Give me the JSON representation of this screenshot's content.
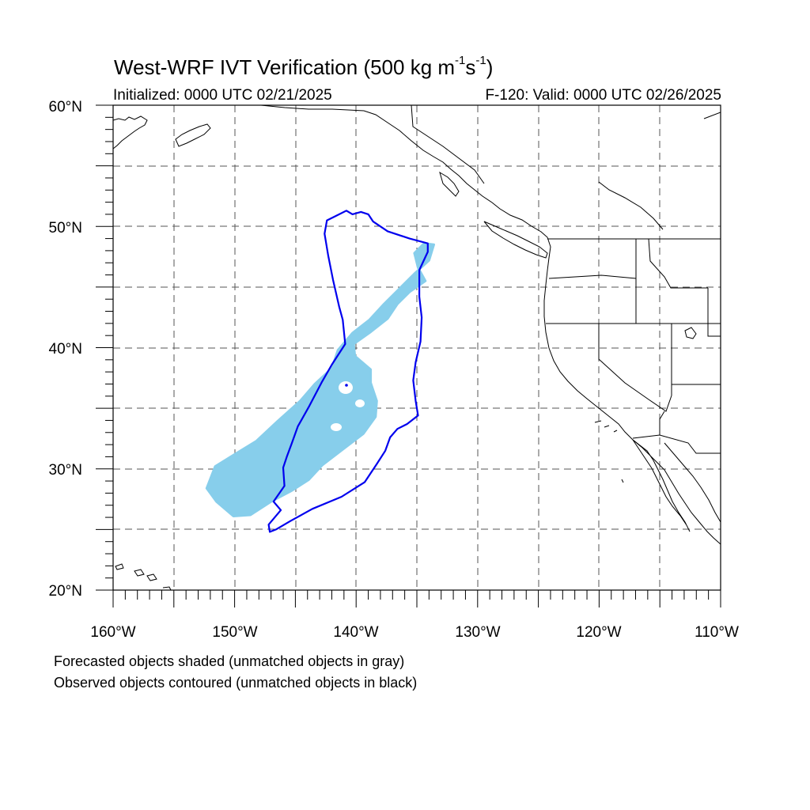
{
  "title_main": "West-WRF IVT Verification (500 kg m",
  "title_sup1": "-1",
  "title_s": "s",
  "title_sup2": "-1",
  "title_close": ")",
  "init_label": "Initialized: 0000 UTC 02/21/2025",
  "valid_label": "F-120: Valid: 0000 UTC 02/26/2025",
  "footnote1": "Forecasted objects shaded (unmatched objects in gray)",
  "footnote2": "Observed objects contoured (unmatched objects in black)",
  "map": {
    "lon_range": [
      -160,
      -110
    ],
    "lat_range": [
      20,
      60
    ],
    "grid_lines": "dashed every 5 degrees",
    "lat_labels": [
      "20°N",
      "30°N",
      "40°N",
      "50°N",
      "60°N"
    ],
    "lon_labels": [
      "160°W",
      "150°W",
      "140°W",
      "130°W",
      "120°W",
      "110°W"
    ],
    "forecast_color": "#87ceeb",
    "observed_color": "#0000ee",
    "forecast_object_outline": [
      [
        -150.1,
        26.1
      ],
      [
        -151.5,
        27.3
      ],
      [
        -152.3,
        28.4
      ],
      [
        -151.6,
        30.2
      ],
      [
        -150.0,
        31.2
      ],
      [
        -148.2,
        32.3
      ],
      [
        -146.5,
        33.9
      ],
      [
        -144.6,
        35.6
      ],
      [
        -143.4,
        37.0
      ],
      [
        -142.0,
        38.3
      ],
      [
        -141.5,
        39.8
      ],
      [
        -140.3,
        41.2
      ],
      [
        -138.9,
        42.3
      ],
      [
        -137.7,
        43.6
      ],
      [
        -136.5,
        44.8
      ],
      [
        -135.2,
        46.1
      ],
      [
        -134.0,
        47.2
      ],
      [
        -133.6,
        48.5
      ],
      [
        -134.4,
        48.6
      ],
      [
        -135.2,
        47.8
      ],
      [
        -134.9,
        46.6
      ],
      [
        -134.3,
        45.5
      ],
      [
        -135.6,
        44.6
      ],
      [
        -136.6,
        43.6
      ],
      [
        -137.4,
        42.4
      ],
      [
        -138.8,
        41.3
      ],
      [
        -140.2,
        40.3
      ],
      [
        -140.1,
        39.3
      ],
      [
        -138.8,
        38.2
      ],
      [
        -138.8,
        37.1
      ],
      [
        -138.3,
        35.6
      ],
      [
        -138.4,
        34.3
      ],
      [
        -139.4,
        32.9
      ],
      [
        -141.1,
        31.6
      ],
      [
        -142.8,
        30.3
      ],
      [
        -143.9,
        29.1
      ],
      [
        -145.3,
        28.2
      ],
      [
        -147.0,
        27.3
      ],
      [
        -148.7,
        26.2
      ]
    ],
    "observed_object_outline": [
      [
        -147.1,
        24.8
      ],
      [
        -146.6,
        25.0
      ],
      [
        -145.4,
        25.7
      ],
      [
        -143.6,
        26.7
      ],
      [
        -141.2,
        27.7
      ],
      [
        -139.3,
        28.9
      ],
      [
        -138.3,
        30.4
      ],
      [
        -137.6,
        31.5
      ],
      [
        -137.2,
        32.6
      ],
      [
        -136.6,
        33.3
      ],
      [
        -135.8,
        33.7
      ],
      [
        -134.9,
        34.4
      ],
      [
        -135.1,
        35.6
      ],
      [
        -135.3,
        37.3
      ],
      [
        -135.1,
        38.8
      ],
      [
        -134.7,
        40.5
      ],
      [
        -134.6,
        42.5
      ],
      [
        -134.8,
        44.2
      ],
      [
        -134.8,
        46.4
      ],
      [
        -134.1,
        47.9
      ],
      [
        -134.1,
        48.6
      ],
      [
        -135.6,
        49.0
      ],
      [
        -137.4,
        49.6
      ],
      [
        -138.6,
        50.4
      ],
      [
        -139.0,
        51.0
      ],
      [
        -139.6,
        51.2
      ],
      [
        -140.3,
        51.0
      ],
      [
        -140.8,
        51.3
      ],
      [
        -141.6,
        50.9
      ],
      [
        -142.4,
        50.5
      ],
      [
        -142.6,
        49.4
      ],
      [
        -142.3,
        47.6
      ],
      [
        -141.9,
        45.6
      ],
      [
        -141.4,
        43.4
      ],
      [
        -141.1,
        42.3
      ],
      [
        -140.9,
        40.3
      ],
      [
        -142.0,
        38.6
      ],
      [
        -142.8,
        37.2
      ],
      [
        -143.9,
        35.1
      ],
      [
        -144.8,
        33.5
      ],
      [
        -145.3,
        32.1
      ],
      [
        -145.7,
        31.0
      ],
      [
        -146.0,
        30.1
      ],
      [
        -145.9,
        28.6
      ],
      [
        -146.8,
        27.3
      ],
      [
        -146.2,
        26.6
      ],
      [
        -147.2,
        25.4
      ]
    ]
  }
}
